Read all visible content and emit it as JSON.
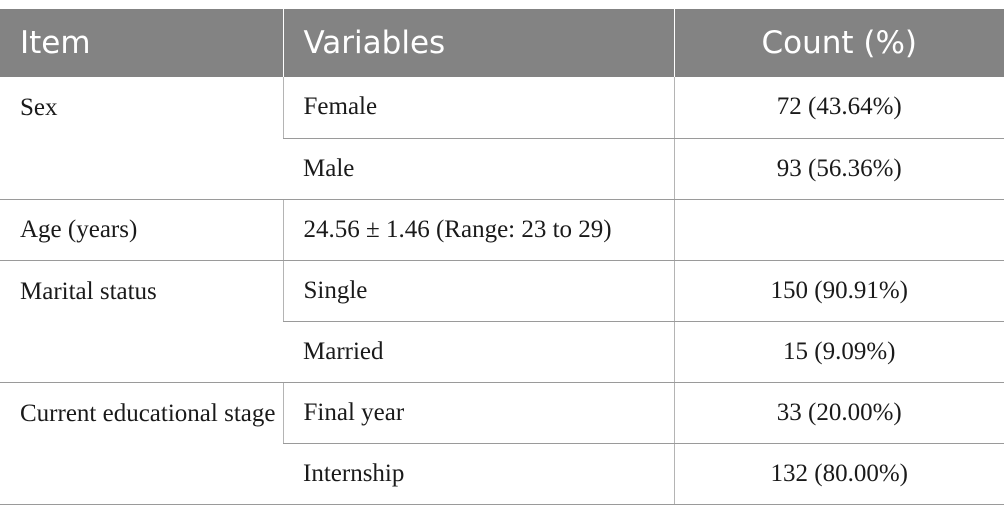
{
  "header": {
    "col1": "Item",
    "col2": "Variables",
    "col3": "Count (%)"
  },
  "rows": {
    "sex": {
      "item": "Sex",
      "female": {
        "variable": "Female",
        "count": "72 (43.64%)"
      },
      "male": {
        "variable": "Male",
        "count": "93 (56.36%)"
      }
    },
    "age": {
      "item": "Age (years)",
      "variable": "24.56 ± 1.46 (Range: 23 to 29)",
      "count": ""
    },
    "marital": {
      "item": "Marital status",
      "single": {
        "variable": "Single",
        "count": "150 (90.91%)"
      },
      "married": {
        "variable": "Married",
        "count": "15 (9.09%)"
      }
    },
    "education": {
      "item": "Current educational stage",
      "final_year": {
        "variable": "Final year",
        "count": "33 (20.00%)"
      },
      "internship": {
        "variable": "Internship",
        "count": "132 (80.00%)"
      }
    }
  }
}
